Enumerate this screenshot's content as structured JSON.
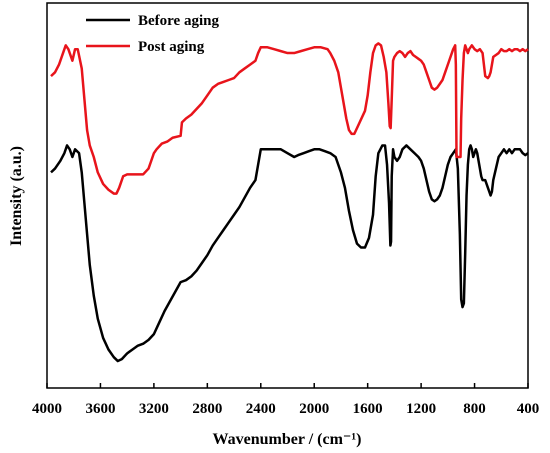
{
  "chart_data": {
    "type": "line",
    "xlabel": "Wavenumber / (cm⁻¹)",
    "ylabel": "Intensity (a.u.)",
    "xlim": [
      4000,
      400
    ],
    "x_reversed": true,
    "xticks": [
      4000,
      3600,
      3200,
      2800,
      2400,
      2000,
      1600,
      1200,
      800,
      400
    ],
    "ylim": [
      0,
      100
    ],
    "y_tick_labels": false,
    "grid": false,
    "legend_position": "top-left",
    "series": [
      {
        "name": "Before aging",
        "color": "#000000",
        "points": [
          [
            3970,
            56
          ],
          [
            3940,
            57
          ],
          [
            3900,
            59
          ],
          [
            3870,
            61
          ],
          [
            3850,
            63
          ],
          [
            3830,
            62
          ],
          [
            3810,
            60
          ],
          [
            3790,
            62
          ],
          [
            3760,
            61
          ],
          [
            3740,
            56
          ],
          [
            3720,
            48
          ],
          [
            3700,
            40
          ],
          [
            3680,
            32
          ],
          [
            3650,
            24
          ],
          [
            3620,
            18
          ],
          [
            3580,
            13
          ],
          [
            3540,
            10
          ],
          [
            3500,
            8
          ],
          [
            3470,
            7
          ],
          [
            3440,
            7.5
          ],
          [
            3400,
            9
          ],
          [
            3360,
            10
          ],
          [
            3320,
            11
          ],
          [
            3280,
            11.5
          ],
          [
            3240,
            12.5
          ],
          [
            3200,
            14
          ],
          [
            3160,
            17
          ],
          [
            3120,
            20
          ],
          [
            3080,
            22.5
          ],
          [
            3040,
            25
          ],
          [
            3000,
            27.5
          ],
          [
            2960,
            28
          ],
          [
            2920,
            29
          ],
          [
            2880,
            30.5
          ],
          [
            2840,
            32.5
          ],
          [
            2800,
            34.5
          ],
          [
            2760,
            37
          ],
          [
            2720,
            39
          ],
          [
            2680,
            41
          ],
          [
            2640,
            43
          ],
          [
            2600,
            45
          ],
          [
            2560,
            47
          ],
          [
            2520,
            49.5
          ],
          [
            2480,
            52
          ],
          [
            2440,
            54
          ],
          [
            2420,
            58
          ],
          [
            2400,
            62
          ],
          [
            2360,
            62
          ],
          [
            2300,
            62
          ],
          [
            2250,
            62
          ],
          [
            2200,
            61
          ],
          [
            2150,
            60
          ],
          [
            2120,
            60.5
          ],
          [
            2080,
            61
          ],
          [
            2040,
            61.5
          ],
          [
            2000,
            62
          ],
          [
            1960,
            62
          ],
          [
            1920,
            61.5
          ],
          [
            1880,
            61
          ],
          [
            1840,
            60
          ],
          [
            1800,
            56
          ],
          [
            1770,
            52
          ],
          [
            1740,
            46
          ],
          [
            1710,
            41
          ],
          [
            1680,
            37.5
          ],
          [
            1650,
            36.5
          ],
          [
            1620,
            36.5
          ],
          [
            1590,
            39
          ],
          [
            1560,
            45
          ],
          [
            1540,
            55
          ],
          [
            1520,
            61
          ],
          [
            1490,
            63
          ],
          [
            1470,
            63
          ],
          [
            1455,
            58
          ],
          [
            1440,
            48
          ],
          [
            1430,
            37
          ],
          [
            1425,
            38
          ],
          [
            1420,
            55
          ],
          [
            1410,
            62
          ],
          [
            1400,
            60
          ],
          [
            1380,
            59
          ],
          [
            1360,
            60
          ],
          [
            1340,
            62
          ],
          [
            1310,
            63
          ],
          [
            1280,
            62
          ],
          [
            1250,
            61
          ],
          [
            1220,
            60
          ],
          [
            1200,
            59
          ],
          [
            1180,
            57
          ],
          [
            1160,
            54
          ],
          [
            1140,
            51
          ],
          [
            1120,
            49
          ],
          [
            1100,
            48.5
          ],
          [
            1080,
            49
          ],
          [
            1060,
            50
          ],
          [
            1040,
            52
          ],
          [
            1020,
            55
          ],
          [
            1000,
            58
          ],
          [
            980,
            60
          ],
          [
            960,
            61
          ],
          [
            940,
            62
          ],
          [
            925,
            57
          ],
          [
            910,
            40
          ],
          [
            900,
            23
          ],
          [
            890,
            21
          ],
          [
            880,
            22
          ],
          [
            870,
            35
          ],
          [
            860,
            50
          ],
          [
            850,
            58
          ],
          [
            840,
            62
          ],
          [
            830,
            63
          ],
          [
            820,
            62
          ],
          [
            810,
            60
          ],
          [
            800,
            61
          ],
          [
            790,
            62
          ],
          [
            780,
            61
          ],
          [
            770,
            59
          ],
          [
            760,
            57
          ],
          [
            750,
            55
          ],
          [
            740,
            54
          ],
          [
            720,
            54
          ],
          [
            700,
            52
          ],
          [
            690,
            51
          ],
          [
            680,
            50
          ],
          [
            670,
            51
          ],
          [
            660,
            54
          ],
          [
            640,
            57
          ],
          [
            620,
            60
          ],
          [
            600,
            61
          ],
          [
            580,
            62
          ],
          [
            560,
            61
          ],
          [
            540,
            62
          ],
          [
            520,
            61
          ],
          [
            500,
            62
          ],
          [
            480,
            62
          ],
          [
            460,
            62
          ],
          [
            440,
            61
          ],
          [
            420,
            60.5
          ],
          [
            400,
            61
          ]
        ]
      },
      {
        "name": "Post aging",
        "color": "#e8141b",
        "points": [
          [
            3970,
            81
          ],
          [
            3940,
            82
          ],
          [
            3910,
            84
          ],
          [
            3880,
            87
          ],
          [
            3860,
            89
          ],
          [
            3840,
            88
          ],
          [
            3810,
            85
          ],
          [
            3790,
            88
          ],
          [
            3770,
            88
          ],
          [
            3740,
            83
          ],
          [
            3720,
            75
          ],
          [
            3700,
            67
          ],
          [
            3680,
            63
          ],
          [
            3650,
            60
          ],
          [
            3620,
            56
          ],
          [
            3580,
            53
          ],
          [
            3540,
            51.5
          ],
          [
            3500,
            50.5
          ],
          [
            3480,
            50.5
          ],
          [
            3460,
            52
          ],
          [
            3430,
            55
          ],
          [
            3400,
            55.5
          ],
          [
            3360,
            55.5
          ],
          [
            3320,
            55.5
          ],
          [
            3280,
            55.5
          ],
          [
            3240,
            57
          ],
          [
            3220,
            59
          ],
          [
            3200,
            61
          ],
          [
            3180,
            62
          ],
          [
            3140,
            63.5
          ],
          [
            3100,
            64
          ],
          [
            3060,
            65
          ],
          [
            3000,
            65.5
          ],
          [
            2990,
            69
          ],
          [
            2960,
            70
          ],
          [
            2920,
            71
          ],
          [
            2880,
            72.5
          ],
          [
            2840,
            74
          ],
          [
            2800,
            76
          ],
          [
            2760,
            78
          ],
          [
            2720,
            79
          ],
          [
            2680,
            79.5
          ],
          [
            2640,
            80
          ],
          [
            2600,
            80.5
          ],
          [
            2560,
            82
          ],
          [
            2520,
            83
          ],
          [
            2480,
            84
          ],
          [
            2440,
            85
          ],
          [
            2420,
            87
          ],
          [
            2400,
            88.5
          ],
          [
            2350,
            88.5
          ],
          [
            2300,
            88
          ],
          [
            2250,
            87.5
          ],
          [
            2200,
            87
          ],
          [
            2150,
            87
          ],
          [
            2100,
            87.5
          ],
          [
            2050,
            88
          ],
          [
            2000,
            88.5
          ],
          [
            1950,
            88.5
          ],
          [
            1900,
            88
          ],
          [
            1880,
            87
          ],
          [
            1850,
            85
          ],
          [
            1820,
            82
          ],
          [
            1800,
            78
          ],
          [
            1780,
            74
          ],
          [
            1760,
            70
          ],
          [
            1740,
            67
          ],
          [
            1720,
            66
          ],
          [
            1700,
            66
          ],
          [
            1680,
            67.5
          ],
          [
            1660,
            69
          ],
          [
            1620,
            72
          ],
          [
            1600,
            76
          ],
          [
            1580,
            82
          ],
          [
            1560,
            87
          ],
          [
            1540,
            89
          ],
          [
            1520,
            89.5
          ],
          [
            1500,
            89
          ],
          [
            1480,
            86
          ],
          [
            1460,
            82
          ],
          [
            1445,
            74
          ],
          [
            1435,
            68
          ],
          [
            1428,
            67.5
          ],
          [
            1420,
            75
          ],
          [
            1410,
            85
          ],
          [
            1400,
            86
          ],
          [
            1380,
            87
          ],
          [
            1360,
            87.5
          ],
          [
            1340,
            87
          ],
          [
            1320,
            86
          ],
          [
            1300,
            87
          ],
          [
            1280,
            87.5
          ],
          [
            1260,
            86.5
          ],
          [
            1240,
            86
          ],
          [
            1220,
            85.5
          ],
          [
            1200,
            85
          ],
          [
            1180,
            84
          ],
          [
            1160,
            82
          ],
          [
            1140,
            80
          ],
          [
            1120,
            78
          ],
          [
            1100,
            77.5
          ],
          [
            1080,
            78
          ],
          [
            1060,
            79
          ],
          [
            1040,
            80
          ],
          [
            1020,
            82
          ],
          [
            1000,
            84
          ],
          [
            980,
            86
          ],
          [
            960,
            88
          ],
          [
            945,
            89
          ],
          [
            940,
            84
          ],
          [
            935,
            60
          ],
          [
            925,
            60
          ],
          [
            905,
            60
          ],
          [
            900,
            70
          ],
          [
            890,
            80
          ],
          [
            880,
            87
          ],
          [
            870,
            89
          ],
          [
            860,
            88
          ],
          [
            850,
            87
          ],
          [
            840,
            88
          ],
          [
            820,
            89
          ],
          [
            800,
            88
          ],
          [
            780,
            87.5
          ],
          [
            760,
            88
          ],
          [
            740,
            87
          ],
          [
            730,
            84
          ],
          [
            720,
            81
          ],
          [
            700,
            80.5
          ],
          [
            690,
            81
          ],
          [
            680,
            82
          ],
          [
            670,
            84
          ],
          [
            660,
            86
          ],
          [
            640,
            86.5
          ],
          [
            620,
            87
          ],
          [
            600,
            88
          ],
          [
            580,
            87.5
          ],
          [
            560,
            87.5
          ],
          [
            540,
            88
          ],
          [
            520,
            87.5
          ],
          [
            500,
            88
          ],
          [
            480,
            88
          ],
          [
            460,
            87.5
          ],
          [
            440,
            88
          ],
          [
            420,
            87.5
          ],
          [
            400,
            88
          ]
        ]
      }
    ]
  }
}
